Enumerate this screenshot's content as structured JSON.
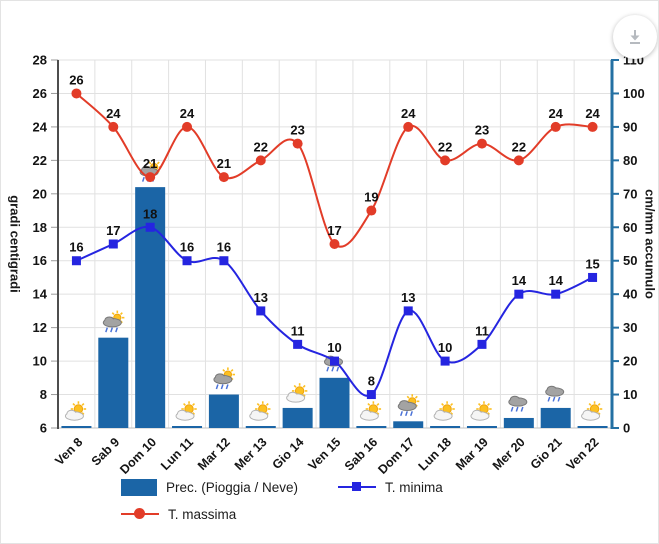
{
  "download_button": {
    "icon": "download-icon"
  },
  "chart_data": {
    "type": "mixed",
    "categories": [
      "Ven 8",
      "Sab 9",
      "Dom 10",
      "Lun 11",
      "Mar 12",
      "Mer 13",
      "Gio 14",
      "Ven 15",
      "Sab 16",
      "Dom 17",
      "Lun 18",
      "Mar 19",
      "Mer 20",
      "Gio 21",
      "Ven 22"
    ],
    "series": [
      {
        "name": "Prec. (Pioggia / Neve)",
        "type": "bar",
        "axis": "right",
        "color": "#1b65a6",
        "values": [
          0.5,
          27,
          72,
          0.5,
          10,
          0.5,
          6,
          15,
          0.5,
          2,
          0.5,
          0.5,
          3,
          6,
          0.5
        ]
      },
      {
        "name": "T. minima",
        "type": "line",
        "axis": "left",
        "color": "#2525e0",
        "marker": "square",
        "values": [
          16,
          17,
          18,
          16,
          16,
          13,
          11,
          10,
          8,
          13,
          10,
          11,
          14,
          14,
          15
        ]
      },
      {
        "name": "T. massima",
        "type": "line",
        "axis": "left",
        "color": "#e23c28",
        "marker": "circle",
        "values": [
          26,
          24,
          21,
          24,
          21,
          22,
          23,
          17,
          19,
          24,
          22,
          23,
          22,
          24,
          24
        ]
      }
    ],
    "weather_icons": [
      "partly",
      "rain-sun",
      "rain-sun",
      "partly",
      "rain-sun",
      "partly",
      "partly",
      "rain",
      "partly",
      "rain-sun",
      "partly",
      "partly",
      "rain",
      "rain",
      "partly"
    ],
    "y_left": {
      "title": "gradi centigradi",
      "min": 6,
      "max": 28,
      "step": 2
    },
    "y_right": {
      "title": "cm/mm accumulo",
      "min": 0,
      "max": 110,
      "step": 10
    },
    "legend_position": "bottom",
    "grid": true,
    "colors": {
      "grid": "#e1e1e1",
      "left_axis": "#4d4d4d",
      "right_axis": "#2470a3",
      "bottom_axis": "#c2c2c2",
      "tick_label": "#141414",
      "data_label": "#111111",
      "sun": "#fcc021",
      "sun_stroke": "#f0a30a",
      "cloud_light": "#f5f5f5",
      "cloud_dark": "#a3a3a3",
      "rain_drop": "#4a72d8"
    }
  }
}
